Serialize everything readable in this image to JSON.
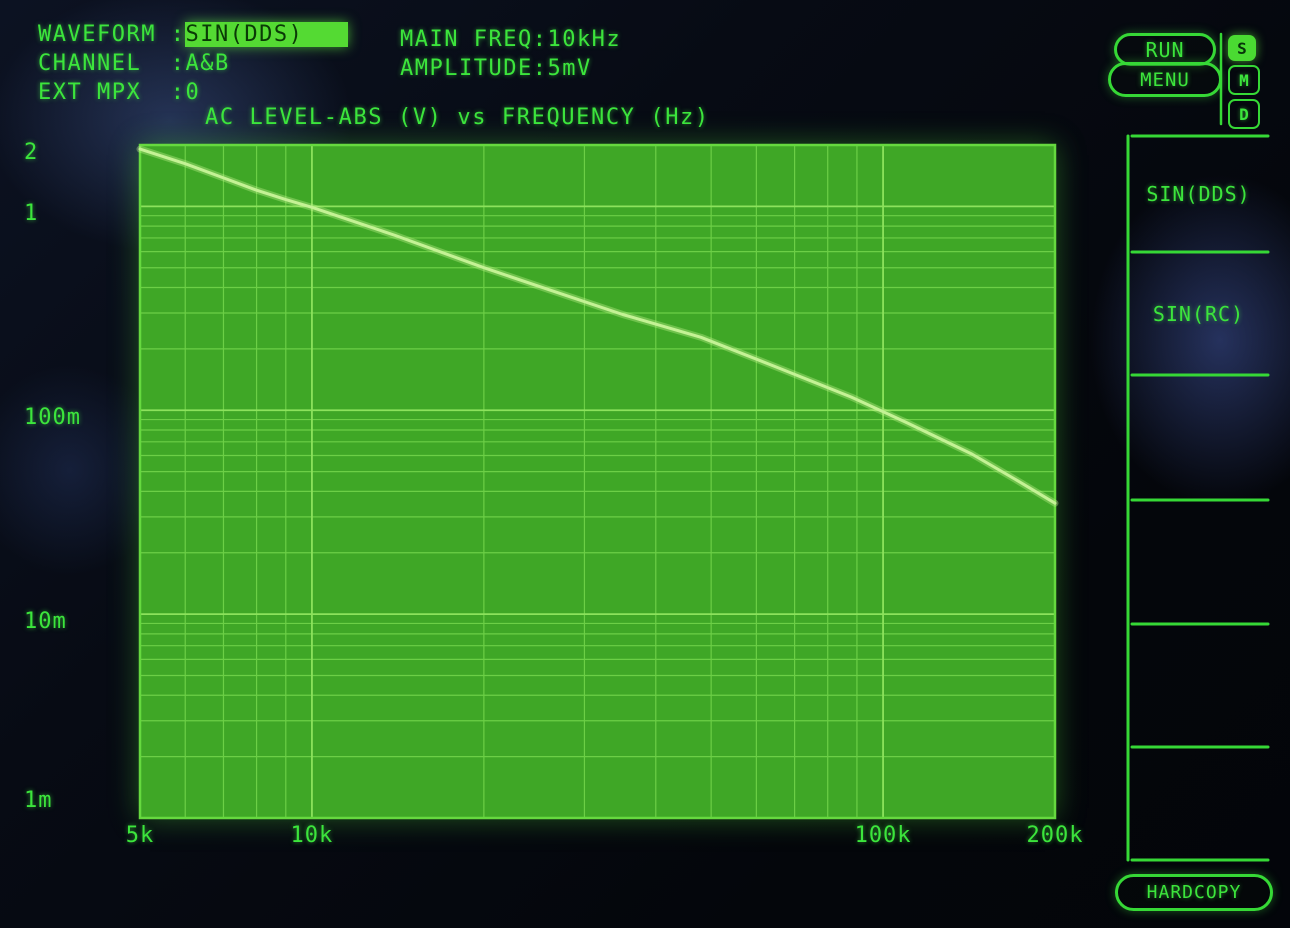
{
  "colors": {
    "text_green": "#3ce53c",
    "line_green": "#36d836",
    "plot_bg": "#3fa726",
    "grid_minor": "#6ccf46",
    "grid_major": "#8ce25c",
    "plot_border": "#66d93f",
    "trace": "#c4f295",
    "highlight_bg": "#54da33",
    "highlight_text": "#0a3a06"
  },
  "header": {
    "settings": [
      {
        "label": "WAVEFORM",
        "value": "SIN(DDS)",
        "highlighted": true
      },
      {
        "label": "CHANNEL",
        "value": "A&B",
        "highlighted": false
      },
      {
        "label": "EXT MPX",
        "value": "0",
        "highlighted": false
      }
    ],
    "params": [
      {
        "label": "MAIN FREQ",
        "value": "10kHz"
      },
      {
        "label": "AMPLITUDE",
        "value": "5mV"
      }
    ]
  },
  "controls": {
    "run_label": "RUN",
    "menu_label": "MENU",
    "hardcopy_label": "HARDCOPY",
    "mode_indicators": [
      {
        "label": "S",
        "active": true
      },
      {
        "label": "M",
        "active": false
      },
      {
        "label": "D",
        "active": false
      }
    ]
  },
  "softkeys": {
    "items": [
      {
        "label": "SIN(DDS)"
      },
      {
        "label": "SIN(RC)"
      },
      {
        "label": ""
      },
      {
        "label": ""
      },
      {
        "label": ""
      },
      {
        "label": ""
      }
    ]
  },
  "chart_data": {
    "type": "line",
    "title": "AC LEVEL-ABS (V) vs FREQUENCY (Hz)",
    "xlabel": "FREQUENCY (Hz)",
    "ylabel": "AC LEVEL-ABS (V)",
    "x_scale": "log",
    "y_scale": "log",
    "xlim": [
      5000,
      200000
    ],
    "ylim": [
      0.001,
      2
    ],
    "grid": "log minor and major lines on",
    "legend": "none",
    "x_ticks": [
      {
        "value": 5000,
        "label": "5k"
      },
      {
        "value": 10000,
        "label": "10k"
      },
      {
        "value": 100000,
        "label": "100k"
      },
      {
        "value": 200000,
        "label": "200k"
      }
    ],
    "y_ticks": [
      {
        "value": 2,
        "label": "2"
      },
      {
        "value": 1,
        "label": "1"
      },
      {
        "value": 0.1,
        "label": "100m"
      },
      {
        "value": 0.01,
        "label": "10m"
      },
      {
        "value": 0.001,
        "label": "1m"
      }
    ],
    "series": [
      {
        "name": "AC LEVEL-ABS",
        "points": [
          [
            5000,
            1.91
          ],
          [
            6000,
            1.62
          ],
          [
            7000,
            1.38
          ],
          [
            8000,
            1.2
          ],
          [
            9000,
            1.08
          ],
          [
            10000,
            0.99
          ],
          [
            14000,
            0.72
          ],
          [
            20000,
            0.5
          ],
          [
            26000,
            0.39
          ],
          [
            35000,
            0.295
          ],
          [
            48000,
            0.228
          ],
          [
            65000,
            0.163
          ],
          [
            88000,
            0.116
          ],
          [
            110000,
            0.087
          ],
          [
            143000,
            0.061
          ],
          [
            170000,
            0.046
          ],
          [
            200000,
            0.035
          ]
        ]
      }
    ]
  }
}
